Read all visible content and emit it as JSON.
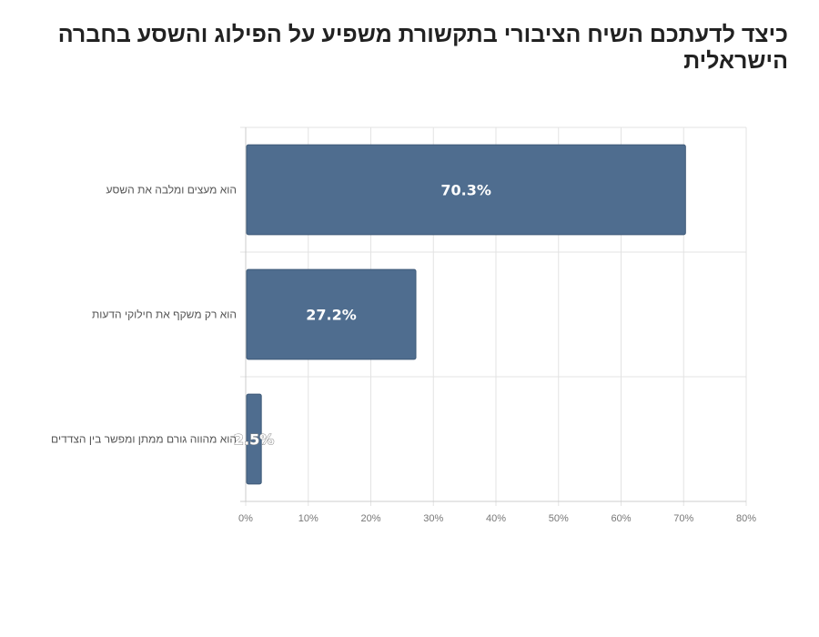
{
  "chart_data": {
    "type": "bar",
    "orientation": "horizontal",
    "title": "כיצד לדעתכם השיח הציבורי בתקשורת משפיע על הפילוג והשסע בחברה הישראלית",
    "categories": [
      "הוא מעצים ומלבה את השסע",
      "הוא רק משקף את חילוקי הדעות",
      "הוא מהווה גורם ממתן ומפשר בין הצדדים"
    ],
    "values": [
      70.3,
      27.2,
      2.5
    ],
    "data_labels": [
      "70.3%",
      "27.2%",
      "2.5%"
    ],
    "x_ticks": [
      "0%",
      "10%",
      "20%",
      "30%",
      "40%",
      "50%",
      "60%",
      "70%",
      "80%"
    ],
    "xlim": [
      0,
      80
    ],
    "xlabel": "",
    "ylabel": "",
    "grid": true,
    "legend": "none",
    "colors": {
      "bar": "#4f6d8f",
      "bar_edge": "#3e5a78",
      "grid": "#e3e3e3",
      "axis": "#cccccc"
    }
  }
}
